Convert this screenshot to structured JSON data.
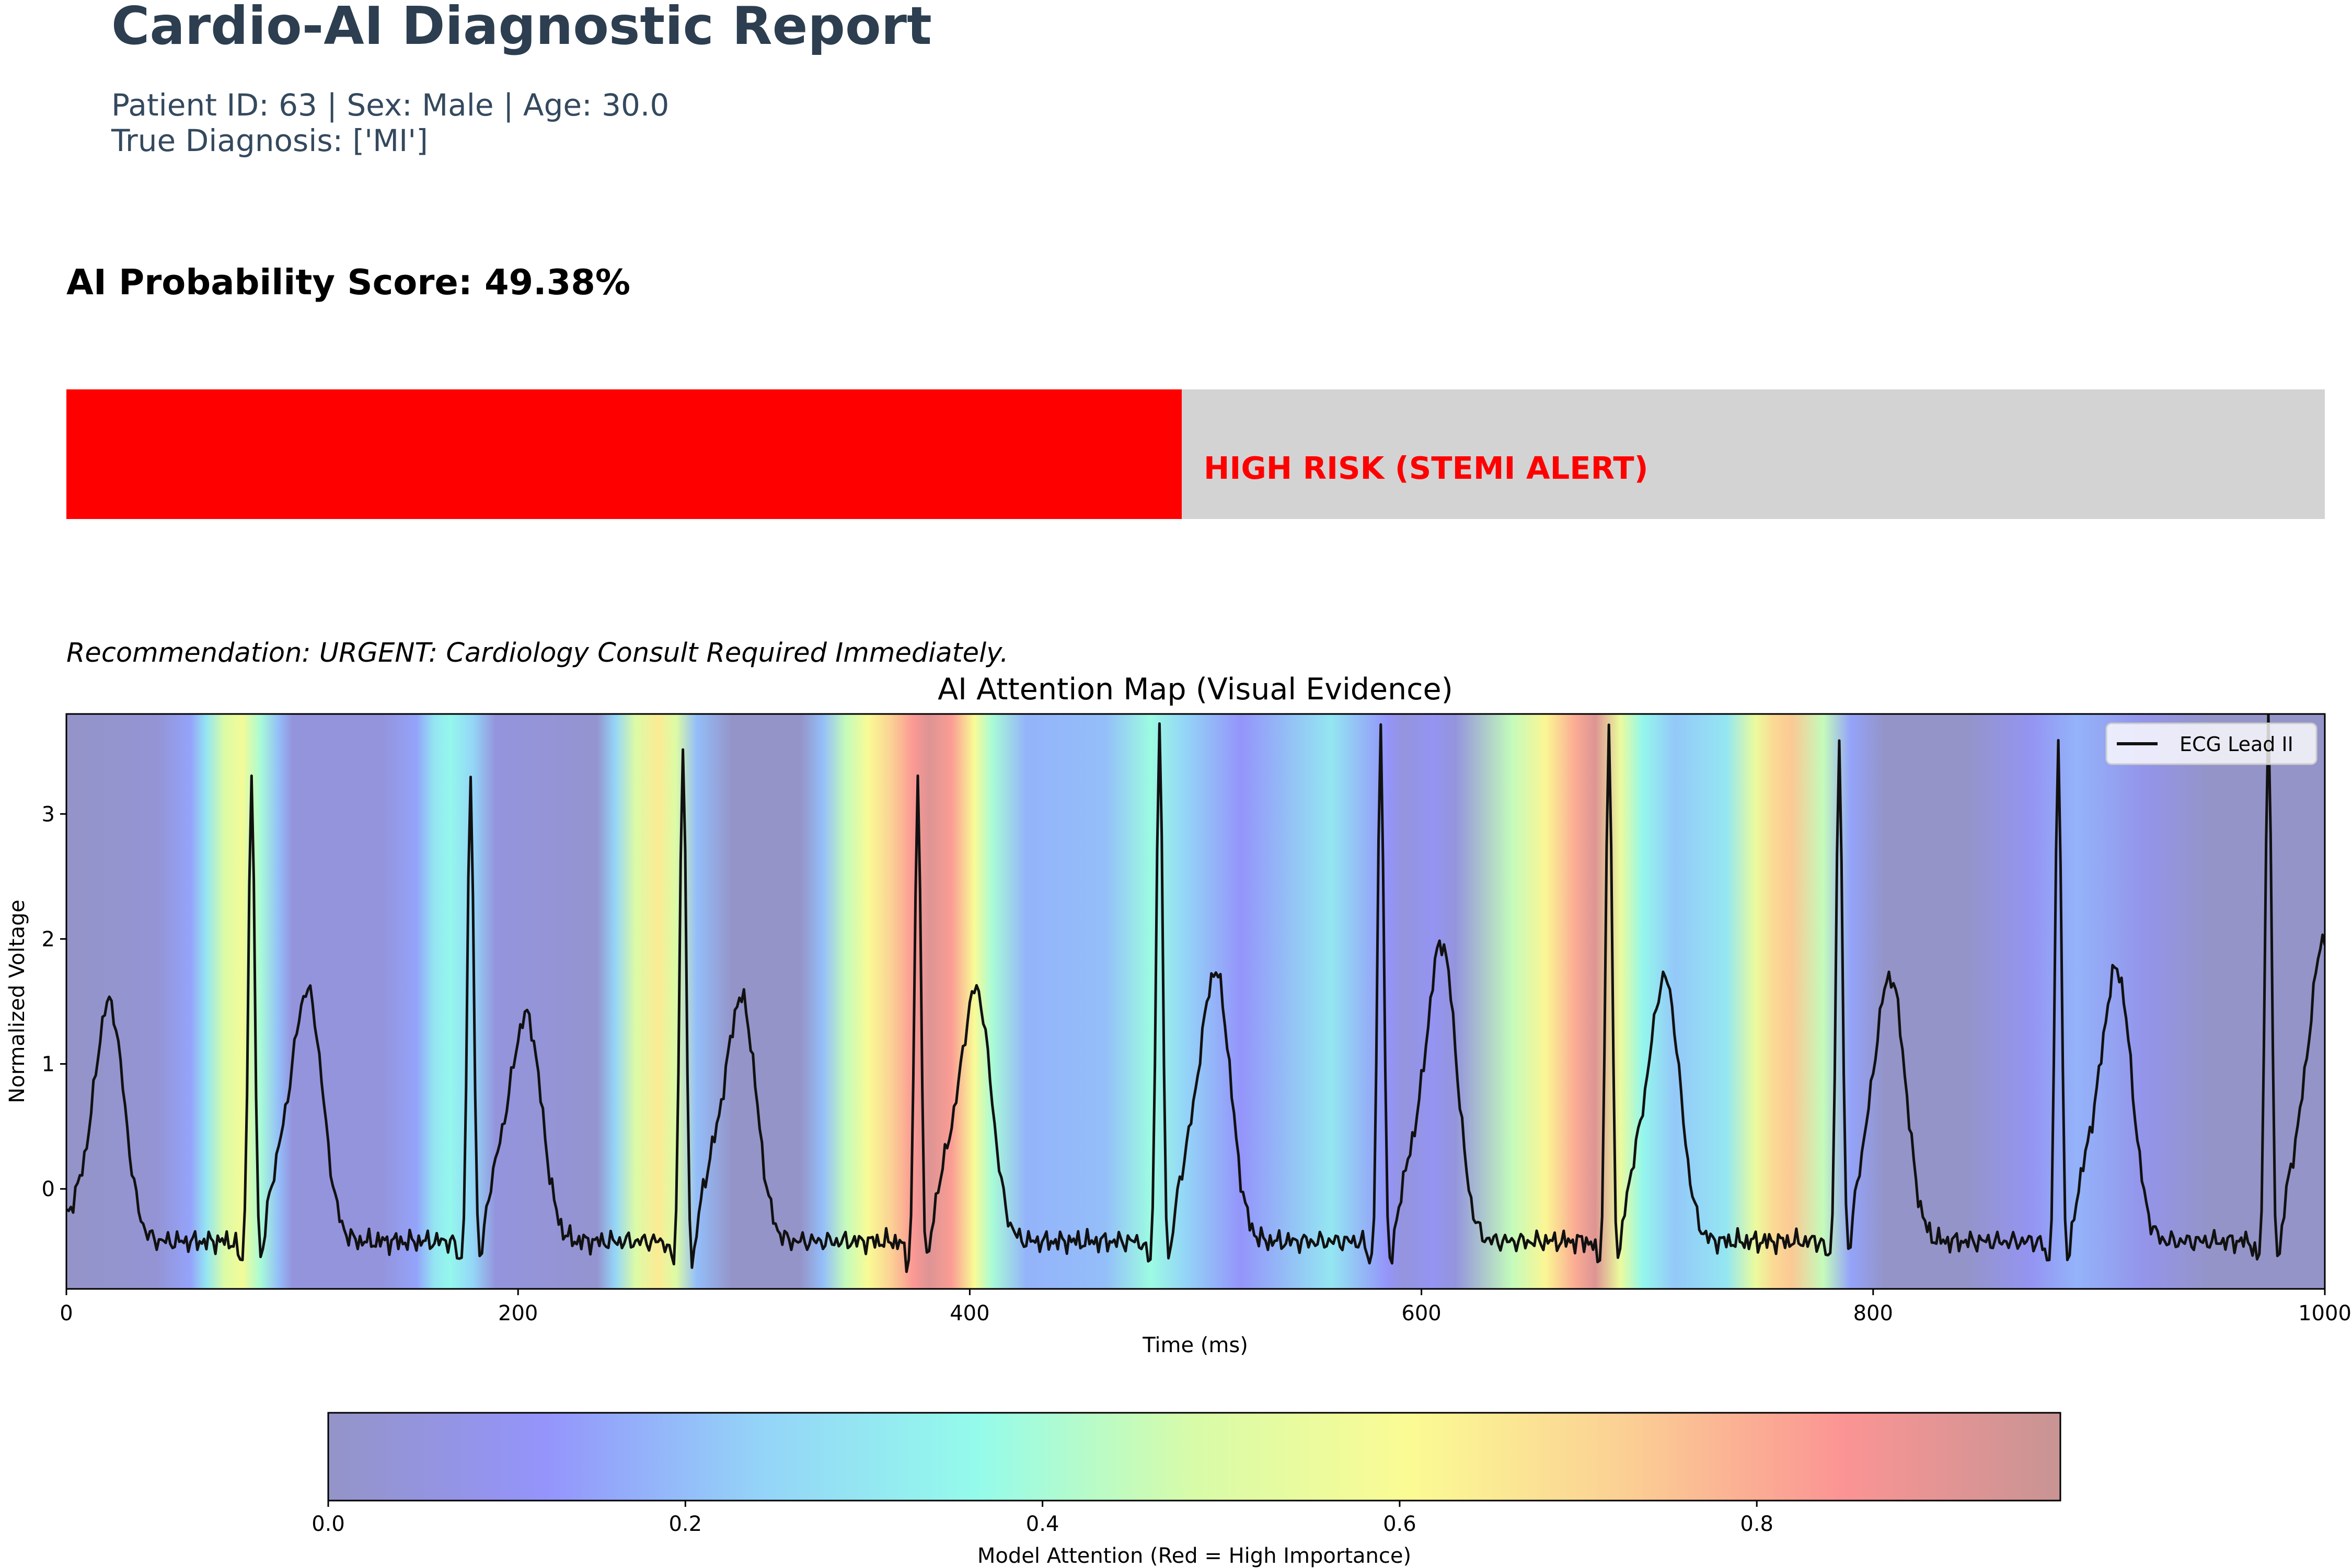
{
  "header": {
    "title": "Cardio-AI Diagnostic Report",
    "patient_line": "Patient ID: 63 | Sex: Male | Age: 30.0",
    "diagnosis_line": "True Diagnosis: ['MI']"
  },
  "score": {
    "label": "AI Probability Score: 49.38%",
    "fraction": 0.4938,
    "fill_color": "#ff0000",
    "track_color": "#d3d3d3",
    "risk_label": "HIGH RISK (STEMI ALERT)",
    "risk_color": "#ff0000"
  },
  "recommendation": "Recommendation: URGENT: Cardiology Consult Required Immediately.",
  "chart_data": {
    "type": "line",
    "title": "AI Attention Map (Visual Evidence)",
    "xlabel": "Time (ms)",
    "ylabel": "Normalized Voltage",
    "xlim": [
      0,
      1000
    ],
    "ylim": [
      -0.8,
      3.8
    ],
    "x_ticks": [
      0,
      200,
      400,
      600,
      800,
      1000
    ],
    "y_ticks": [
      0,
      1,
      2,
      3
    ],
    "legend": {
      "entries": [
        "ECG Lead II"
      ],
      "placement": "top-right"
    },
    "series": [
      {
        "name": "ECG Lead II",
        "color": "#111111",
        "beats": [
          {
            "r_time": 82,
            "r_amp": 3.25
          },
          {
            "r_time": 179,
            "r_amp": 3.25
          },
          {
            "r_time": 273,
            "r_amp": 3.55
          },
          {
            "r_time": 377,
            "r_amp": 3.25
          },
          {
            "r_time": 484,
            "r_amp": 3.7
          },
          {
            "r_time": 582,
            "r_amp": 3.68
          },
          {
            "r_time": 683,
            "r_amp": 3.68
          },
          {
            "r_time": 785,
            "r_amp": 3.48
          },
          {
            "r_time": 882,
            "r_amp": 3.58
          },
          {
            "r_time": 975,
            "r_amp": 3.8
          }
        ],
        "t_waves": [
          {
            "time": 19,
            "amp": 1.48
          },
          {
            "time": 107,
            "amp": 1.55
          },
          {
            "time": 204,
            "amp": 1.35
          },
          {
            "time": 299,
            "amp": 1.5
          },
          {
            "time": 403,
            "amp": 1.57
          },
          {
            "time": 509,
            "amp": 1.7
          },
          {
            "time": 609,
            "amp": 1.95
          },
          {
            "time": 708,
            "amp": 1.65
          },
          {
            "time": 808,
            "amp": 1.63
          },
          {
            "time": 908,
            "amp": 1.73
          },
          {
            "time": 1000,
            "amp": 1.97
          }
        ],
        "baseline": -0.42
      }
    ],
    "attention": {
      "label": "Model Attention (Red = High Importance)",
      "colorbar_range": [
        0,
        0.97
      ],
      "colorbar_ticks": [
        0.0,
        0.2,
        0.4,
        0.6,
        0.8
      ],
      "colorbar_tick_labels": [
        "0.0",
        "0.2",
        "0.4",
        "0.6",
        "0.8"
      ],
      "colormap": [
        "#9494c8",
        "#9494fb",
        "#94d4f8",
        "#94fbeb",
        "#d8fba8",
        "#fbfb94",
        "#fbcf94",
        "#fb9494",
        "#c89494"
      ],
      "profile_time": [
        0,
        40,
        55,
        62,
        70,
        78,
        86,
        94,
        100,
        140,
        155,
        163,
        170,
        180,
        190,
        235,
        243,
        252,
        262,
        270,
        279,
        295,
        325,
        335,
        345,
        355,
        365,
        375,
        382,
        392,
        402,
        410,
        425,
        460,
        480,
        495,
        520,
        560,
        585,
        592,
        605,
        615,
        640,
        655,
        668,
        677,
        688,
        698,
        712,
        735,
        748,
        756,
        764,
        778,
        790,
        805,
        840,
        870,
        890,
        920,
        950,
        1000
      ],
      "profile_value": [
        0.0,
        0.03,
        0.15,
        0.3,
        0.5,
        0.58,
        0.4,
        0.2,
        0.05,
        0.05,
        0.15,
        0.3,
        0.35,
        0.25,
        0.05,
        0.02,
        0.25,
        0.5,
        0.65,
        0.5,
        0.2,
        0.0,
        0.0,
        0.2,
        0.45,
        0.6,
        0.72,
        0.84,
        0.92,
        0.83,
        0.6,
        0.4,
        0.18,
        0.2,
        0.38,
        0.25,
        0.12,
        0.3,
        0.12,
        0.05,
        0.1,
        0.05,
        0.45,
        0.62,
        0.8,
        0.92,
        0.55,
        0.35,
        0.22,
        0.3,
        0.55,
        0.7,
        0.74,
        0.45,
        0.15,
        0.0,
        0.0,
        0.1,
        0.18,
        0.08,
        0.0,
        0.0
      ]
    }
  }
}
